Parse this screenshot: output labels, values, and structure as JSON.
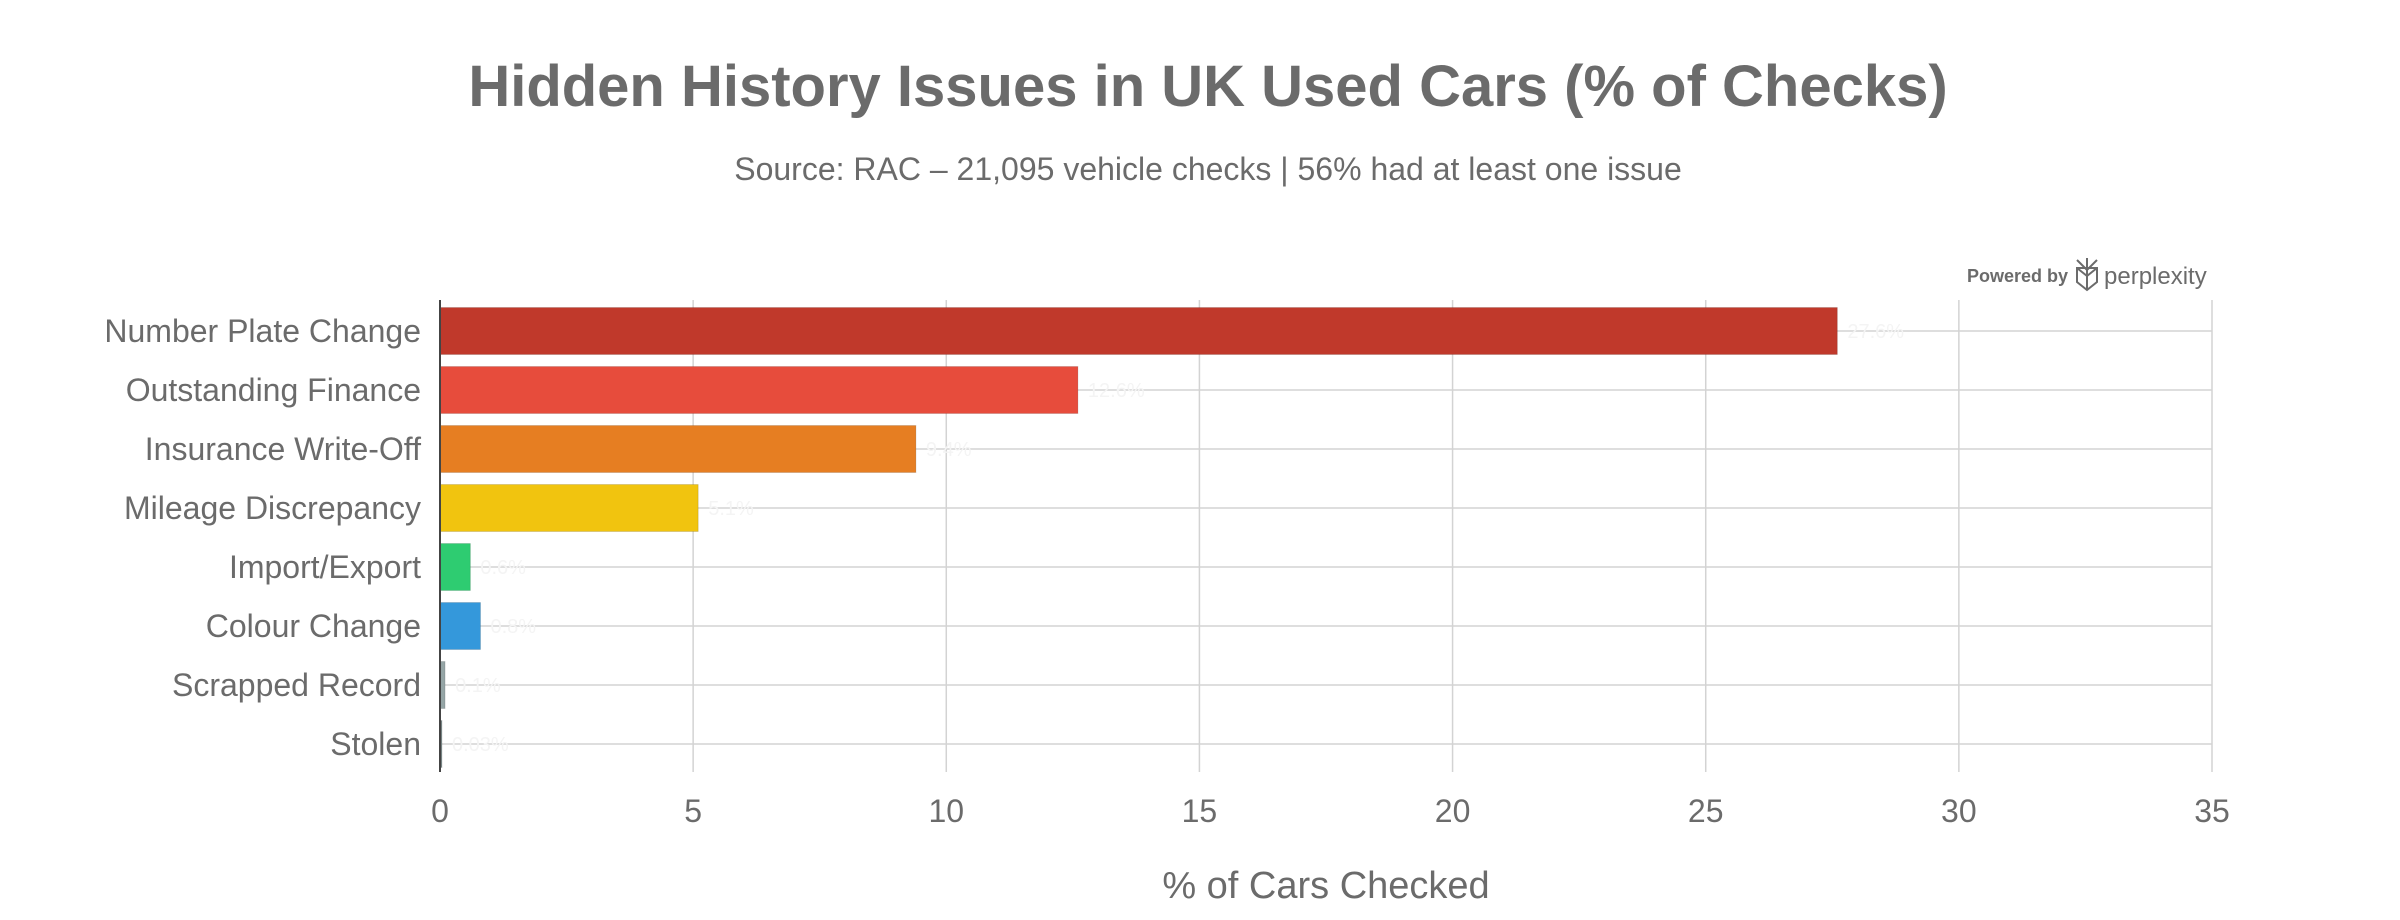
{
  "chart_data": {
    "type": "bar",
    "orientation": "horizontal",
    "title": "Hidden History Issues in UK Used Cars (% of Checks)",
    "subtitle": "Source: RAC – 21,095 vehicle checks | 56% had at least one issue",
    "xlabel": "% of Cars Checked",
    "ylabel": "",
    "xlim": [
      0,
      35
    ],
    "xticks": [
      0,
      5,
      10,
      15,
      20,
      25,
      30,
      35
    ],
    "grid": true,
    "categories": [
      "Number Plate Change",
      "Outstanding Finance",
      "Insurance Write-Off",
      "Mileage Discrepancy",
      "Import/Export",
      "Colour Change",
      "Scrapped Record",
      "Stolen"
    ],
    "values": [
      27.6,
      12.6,
      9.4,
      5.1,
      0.6,
      0.8,
      0.1,
      0.03
    ],
    "value_labels": [
      "27.6%",
      "12.6%",
      "9.4%",
      "5.1%",
      "0.6%",
      "0.8%",
      "0.1%",
      "0.03%"
    ],
    "colors": [
      "#c0392b",
      "#e74c3c",
      "#e67e22",
      "#f1c40f",
      "#2ecc71",
      "#3498db",
      "#95a5a6",
      "#7f8c8d"
    ]
  },
  "branding": {
    "powered_by": "Powered by",
    "name": "perplexity",
    "icon": "perplexity-logo-icon"
  }
}
